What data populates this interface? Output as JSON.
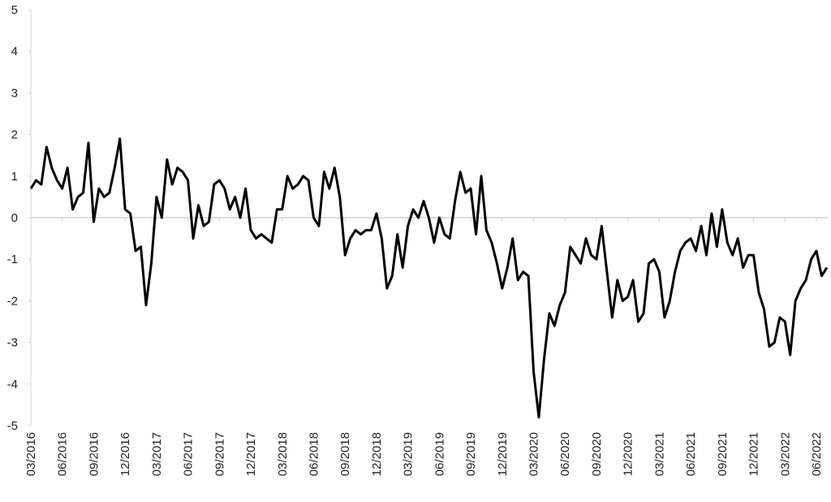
{
  "chart_data": {
    "type": "line",
    "color": "#000000",
    "ylim": [
      -5,
      5
    ],
    "yticks": [
      -5,
      -4,
      -3,
      -2,
      -1,
      0,
      1,
      2,
      3,
      4,
      5
    ],
    "categories": [
      "03/2016",
      null,
      null,
      null,
      null,
      null,
      "06/2016",
      null,
      null,
      null,
      null,
      null,
      "09/2016",
      null,
      null,
      null,
      null,
      null,
      "12/2016",
      null,
      null,
      null,
      null,
      null,
      "03/2017",
      null,
      null,
      null,
      null,
      null,
      "06/2017",
      null,
      null,
      null,
      null,
      null,
      "09/2017",
      null,
      null,
      null,
      null,
      null,
      "12/2017",
      null,
      null,
      null,
      null,
      null,
      "03/2018",
      null,
      null,
      null,
      null,
      null,
      "06/2018",
      null,
      null,
      null,
      null,
      null,
      "09/2018",
      null,
      null,
      null,
      null,
      null,
      "12/2018",
      null,
      null,
      null,
      null,
      null,
      "03/2019",
      null,
      null,
      null,
      null,
      null,
      "06/2019",
      null,
      null,
      null,
      null,
      null,
      "09/2019",
      null,
      null,
      null,
      null,
      null,
      "12/2019",
      null,
      null,
      null,
      null,
      null,
      "03/2020",
      null,
      null,
      null,
      null,
      null,
      "06/2020",
      null,
      null,
      null,
      null,
      null,
      "09/2020",
      null,
      null,
      null,
      null,
      null,
      "12/2020",
      null,
      null,
      null,
      null,
      null,
      "03/2021",
      null,
      null,
      null,
      null,
      null,
      "06/2021",
      null,
      null,
      null,
      null,
      null,
      "09/2021",
      null,
      null,
      null,
      null,
      null,
      "12/2021",
      null,
      null,
      null,
      null,
      null,
      "03/2022",
      null,
      null,
      null,
      null,
      null,
      "06/2022",
      null,
      null
    ],
    "values": [
      0.7,
      0.9,
      0.8,
      1.7,
      1.2,
      0.9,
      0.7,
      1.2,
      0.2,
      0.5,
      0.6,
      1.8,
      -0.1,
      0.7,
      0.5,
      0.6,
      1.2,
      1.9,
      0.2,
      0.1,
      -0.8,
      -0.7,
      -2.1,
      -1.1,
      0.5,
      0.0,
      1.4,
      0.8,
      1.2,
      1.1,
      0.9,
      -0.5,
      0.3,
      -0.2,
      -0.1,
      0.8,
      0.9,
      0.7,
      0.2,
      0.5,
      0.0,
      0.7,
      -0.3,
      -0.5,
      -0.4,
      -0.5,
      -0.6,
      0.2,
      0.2,
      1.0,
      0.7,
      0.8,
      1.0,
      0.9,
      0.0,
      -0.2,
      1.1,
      0.7,
      1.2,
      0.5,
      -0.9,
      -0.5,
      -0.3,
      -0.4,
      -0.3,
      -0.3,
      0.1,
      -0.5,
      -1.7,
      -1.4,
      -0.4,
      -1.2,
      -0.2,
      0.2,
      0.0,
      0.4,
      0.0,
      -0.6,
      0.0,
      -0.4,
      -0.5,
      0.4,
      1.1,
      0.6,
      0.7,
      -0.4,
      1.0,
      -0.3,
      -0.6,
      -1.1,
      -1.7,
      -1.2,
      -0.5,
      -1.5,
      -1.3,
      -1.4,
      -3.7,
      -4.8,
      -3.4,
      -2.3,
      -2.6,
      -2.1,
      -1.8,
      -0.7,
      -0.9,
      -1.1,
      -0.5,
      -0.9,
      -1.0,
      -0.2,
      -1.3,
      -2.4,
      -1.5,
      -2.0,
      -1.9,
      -1.5,
      -2.5,
      -2.3,
      -1.1,
      -1.0,
      -1.3,
      -2.4,
      -2.0,
      -1.3,
      -0.8,
      -0.6,
      -0.5,
      -0.8,
      -0.2,
      -0.9,
      0.1,
      -0.7,
      0.2,
      -0.6,
      -0.9,
      -0.5,
      -1.2,
      -0.9,
      -0.9,
      -1.8,
      -2.2,
      -3.1,
      -3.0,
      -2.4,
      -2.5,
      -3.3,
      -2.0,
      -1.7,
      -1.5,
      -1.0,
      -0.8,
      -1.4,
      -1.2
    ]
  }
}
